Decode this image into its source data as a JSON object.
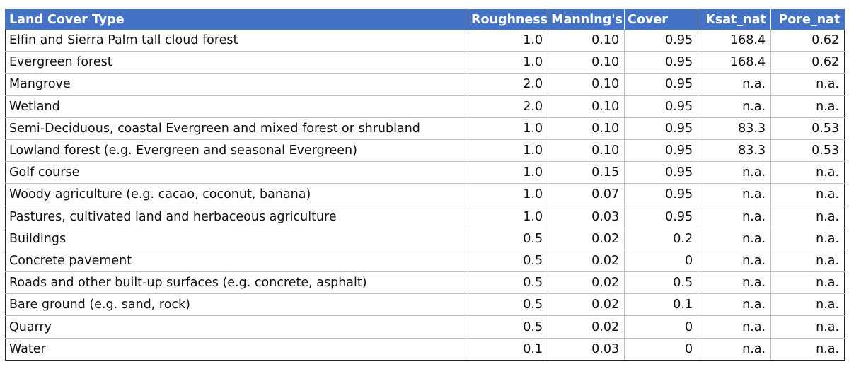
{
  "table": {
    "headers": [
      "Land Cover Type",
      "Roughness",
      "Manning's",
      "Cover",
      "Ksat_nat",
      "Pore_nat"
    ],
    "rows": [
      [
        "Elfin and Sierra Palm tall cloud forest",
        "1.0",
        "0.10",
        "0.95",
        "168.4",
        "0.62"
      ],
      [
        "Evergreen forest",
        "1.0",
        "0.10",
        "0.95",
        "168.4",
        "0.62"
      ],
      [
        "Mangrove",
        "2.0",
        "0.10",
        "0.95",
        "n.a.",
        "n.a."
      ],
      [
        "Wetland",
        "2.0",
        "0.10",
        "0.95",
        "n.a.",
        "n.a."
      ],
      [
        "Semi-Deciduous, coastal Evergreen and mixed forest or shrubland",
        "1.0",
        "0.10",
        "0.95",
        "83.3",
        "0.53"
      ],
      [
        "Lowland forest (e.g. Evergreen and seasonal Evergreen)",
        "1.0",
        "0.10",
        "0.95",
        "83.3",
        "0.53"
      ],
      [
        "Golf course",
        "1.0",
        "0.15",
        "0.95",
        "n.a.",
        "n.a."
      ],
      [
        "Woody agriculture (e.g. cacao, coconut, banana)",
        "1.0",
        "0.07",
        "0.95",
        "n.a.",
        "n.a."
      ],
      [
        "Pastures, cultivated land and herbaceous agriculture",
        "1.0",
        "0.03",
        "0.95",
        "n.a.",
        "n.a."
      ],
      [
        "Buildings",
        "0.5",
        "0.02",
        "0.2",
        "n.a.",
        "n.a."
      ],
      [
        "Concrete pavement",
        "0.5",
        "0.02",
        "0",
        "n.a.",
        "n.a."
      ],
      [
        "Roads and other built-up surfaces (e.g. concrete, asphalt)",
        "0.5",
        "0.02",
        "0.5",
        "n.a.",
        "n.a."
      ],
      [
        "Bare ground (e.g. sand, rock)",
        "0.5",
        "0.02",
        "0.1",
        "n.a.",
        "n.a."
      ],
      [
        "Quarry",
        "0.5",
        "0.02",
        "0",
        "n.a.",
        "n.a."
      ],
      [
        "Water",
        "0.1",
        "0.03",
        "0",
        "n.a.",
        "n.a."
      ]
    ]
  },
  "colors": {
    "header_background": "#4472c4",
    "header_text": "#ffffff",
    "grid_line": "#bfbfbf",
    "outer_border": "#222222"
  }
}
